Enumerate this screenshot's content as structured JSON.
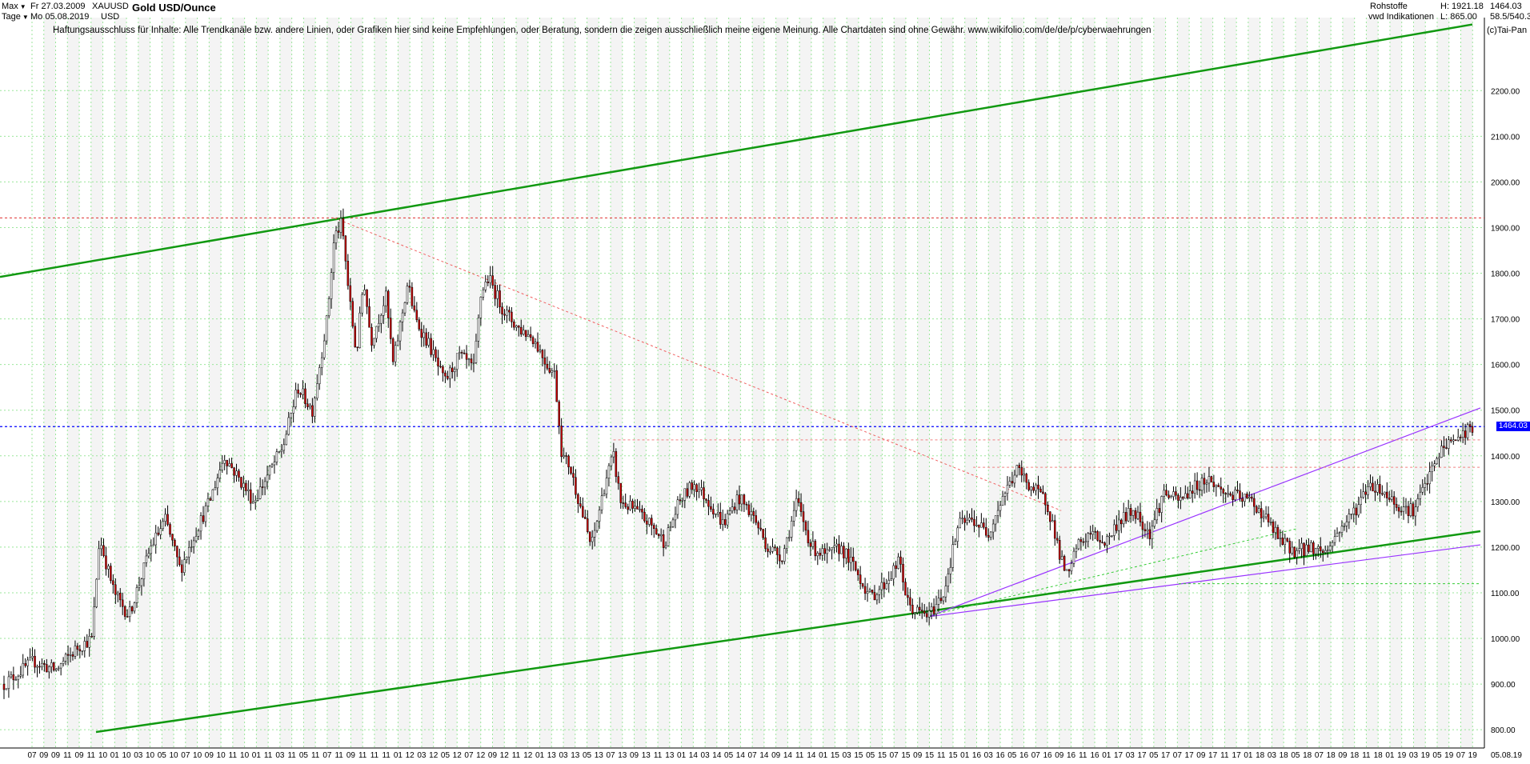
{
  "header": {
    "range_label": "Max",
    "interval_label": "Tage",
    "date_from": "Fr 27.03.2009",
    "date_to": "Mo 05.08.2019",
    "symbol": "XAUUSD",
    "currency": "USD",
    "title": "Gold USD/Ounce",
    "category": "Rohstoffe",
    "source": "vwd Indikationen",
    "high": "H: 1921.18",
    "low": "L: 865.00",
    "last": "1464.03",
    "ratio": "58.5/540.3",
    "credit": "(c)Tai-Pan"
  },
  "disclaimer": "Haftungsausschluss für Inhalte: Alle Trendkanäle bzw. andere Linien, oder Grafiken hier sind keine Empfehlungen, oder Beratung, sondern die zeigen ausschließlich meine eigene Meinung. Alle Chartdaten sind ohne Gewähr.  www.wikifolio.com/de/de/p/cyberwaehrungen",
  "chart_data": {
    "type": "candlestick",
    "title": "Gold USD/Ounce",
    "ylim": [
      760,
      2360
    ],
    "y_ticks": [
      "800.00",
      "900.00",
      "1000.00",
      "1100.00",
      "1200.00",
      "1300.00",
      "1400.00",
      "1500.00",
      "1600.00",
      "1700.00",
      "1800.00",
      "1900.00",
      "2000.00",
      "2100.00",
      "2200.00"
    ],
    "y_tick_values": [
      800,
      900,
      1000,
      1100,
      1200,
      1300,
      1400,
      1500,
      1600,
      1700,
      1800,
      1900,
      2000,
      2100,
      2200
    ],
    "x_tick_labels": [
      "07",
      "09",
      "09",
      "11",
      "09",
      "11",
      "10",
      "01",
      "10",
      "03",
      "10",
      "05",
      "10",
      "07",
      "10",
      "09",
      "10",
      "11",
      "10",
      "01",
      "11",
      "03",
      "11",
      "05",
      "11",
      "07",
      "11",
      "09",
      "11",
      "11",
      "11",
      "01",
      "12",
      "03",
      "12",
      "05",
      "12",
      "07",
      "12",
      "09",
      "12",
      "11",
      "12",
      "01",
      "13",
      "03",
      "13",
      "05",
      "13",
      "07",
      "13",
      "09",
      "13",
      "11",
      "13",
      "01",
      "14",
      "03",
      "14",
      "05",
      "14",
      "07",
      "14",
      "09",
      "14",
      "11",
      "14",
      "01",
      "15",
      "03",
      "15",
      "05",
      "15",
      "07",
      "15",
      "09",
      "15",
      "11",
      "15",
      "01",
      "16",
      "03",
      "16",
      "05",
      "16",
      "07",
      "16",
      "09",
      "16",
      "11",
      "16",
      "01",
      "17",
      "03",
      "17",
      "05",
      "17",
      "07",
      "17",
      "09",
      "17",
      "11",
      "17",
      "01",
      "18",
      "03",
      "18",
      "05",
      "18",
      "07",
      "18",
      "09",
      "18",
      "11",
      "18",
      "01",
      "19",
      "03",
      "19",
      "05",
      "19",
      "07",
      "19"
    ],
    "x_end_label": "05.08.19",
    "last_price": 1464.03,
    "high": 1921.18,
    "low": 865.0,
    "price_path": [
      [
        0,
        900
      ],
      [
        0.02,
        950
      ],
      [
        0.035,
        930
      ],
      [
        0.05,
        980
      ],
      [
        0.06,
        1000
      ],
      [
        0.065,
        1220
      ],
      [
        0.075,
        1100
      ],
      [
        0.085,
        1050
      ],
      [
        0.1,
        1200
      ],
      [
        0.11,
        1260
      ],
      [
        0.12,
        1150
      ],
      [
        0.13,
        1230
      ],
      [
        0.14,
        1300
      ],
      [
        0.15,
        1400
      ],
      [
        0.16,
        1350
      ],
      [
        0.17,
        1300
      ],
      [
        0.19,
        1420
      ],
      [
        0.2,
        1550
      ],
      [
        0.21,
        1500
      ],
      [
        0.215,
        1600
      ],
      [
        0.22,
        1700
      ],
      [
        0.225,
        1880
      ],
      [
        0.23,
        1910
      ],
      [
        0.235,
        1750
      ],
      [
        0.24,
        1620
      ],
      [
        0.245,
        1790
      ],
      [
        0.25,
        1650
      ],
      [
        0.26,
        1750
      ],
      [
        0.265,
        1600
      ],
      [
        0.275,
        1780
      ],
      [
        0.28,
        1700
      ],
      [
        0.29,
        1640
      ],
      [
        0.3,
        1560
      ],
      [
        0.31,
        1620
      ],
      [
        0.32,
        1590
      ],
      [
        0.325,
        1760
      ],
      [
        0.33,
        1790
      ],
      [
        0.34,
        1720
      ],
      [
        0.35,
        1680
      ],
      [
        0.36,
        1660
      ],
      [
        0.37,
        1600
      ],
      [
        0.375,
        1580
      ],
      [
        0.38,
        1400
      ],
      [
        0.385,
        1380
      ],
      [
        0.39,
        1320
      ],
      [
        0.4,
        1200
      ],
      [
        0.41,
        1350
      ],
      [
        0.415,
        1400
      ],
      [
        0.42,
        1300
      ],
      [
        0.43,
        1280
      ],
      [
        0.44,
        1250
      ],
      [
        0.45,
        1210
      ],
      [
        0.46,
        1300
      ],
      [
        0.47,
        1340
      ],
      [
        0.48,
        1300
      ],
      [
        0.49,
        1250
      ],
      [
        0.5,
        1310
      ],
      [
        0.51,
        1270
      ],
      [
        0.52,
        1200
      ],
      [
        0.53,
        1180
      ],
      [
        0.54,
        1300
      ],
      [
        0.55,
        1200
      ],
      [
        0.56,
        1180
      ],
      [
        0.57,
        1200
      ],
      [
        0.58,
        1150
      ],
      [
        0.59,
        1090
      ],
      [
        0.6,
        1120
      ],
      [
        0.61,
        1170
      ],
      [
        0.615,
        1080
      ],
      [
        0.62,
        1060
      ],
      [
        0.63,
        1050
      ],
      [
        0.64,
        1100
      ],
      [
        0.65,
        1250
      ],
      [
        0.66,
        1260
      ],
      [
        0.67,
        1230
      ],
      [
        0.68,
        1310
      ],
      [
        0.69,
        1370
      ],
      [
        0.7,
        1330
      ],
      [
        0.71,
        1300
      ],
      [
        0.715,
        1240
      ],
      [
        0.72,
        1170
      ],
      [
        0.725,
        1130
      ],
      [
        0.73,
        1200
      ],
      [
        0.74,
        1230
      ],
      [
        0.75,
        1210
      ],
      [
        0.76,
        1260
      ],
      [
        0.77,
        1280
      ],
      [
        0.78,
        1230
      ],
      [
        0.79,
        1320
      ],
      [
        0.8,
        1300
      ],
      [
        0.81,
        1330
      ],
      [
        0.82,
        1350
      ],
      [
        0.83,
        1320
      ],
      [
        0.84,
        1310
      ],
      [
        0.85,
        1300
      ],
      [
        0.86,
        1260
      ],
      [
        0.87,
        1210
      ],
      [
        0.88,
        1190
      ],
      [
        0.89,
        1200
      ],
      [
        0.9,
        1190
      ],
      [
        0.91,
        1240
      ],
      [
        0.92,
        1280
      ],
      [
        0.93,
        1340
      ],
      [
        0.94,
        1320
      ],
      [
        0.95,
        1290
      ],
      [
        0.96,
        1280
      ],
      [
        0.97,
        1350
      ],
      [
        0.98,
        1420
      ],
      [
        0.99,
        1440
      ],
      [
        1.0,
        1464
      ]
    ]
  }
}
